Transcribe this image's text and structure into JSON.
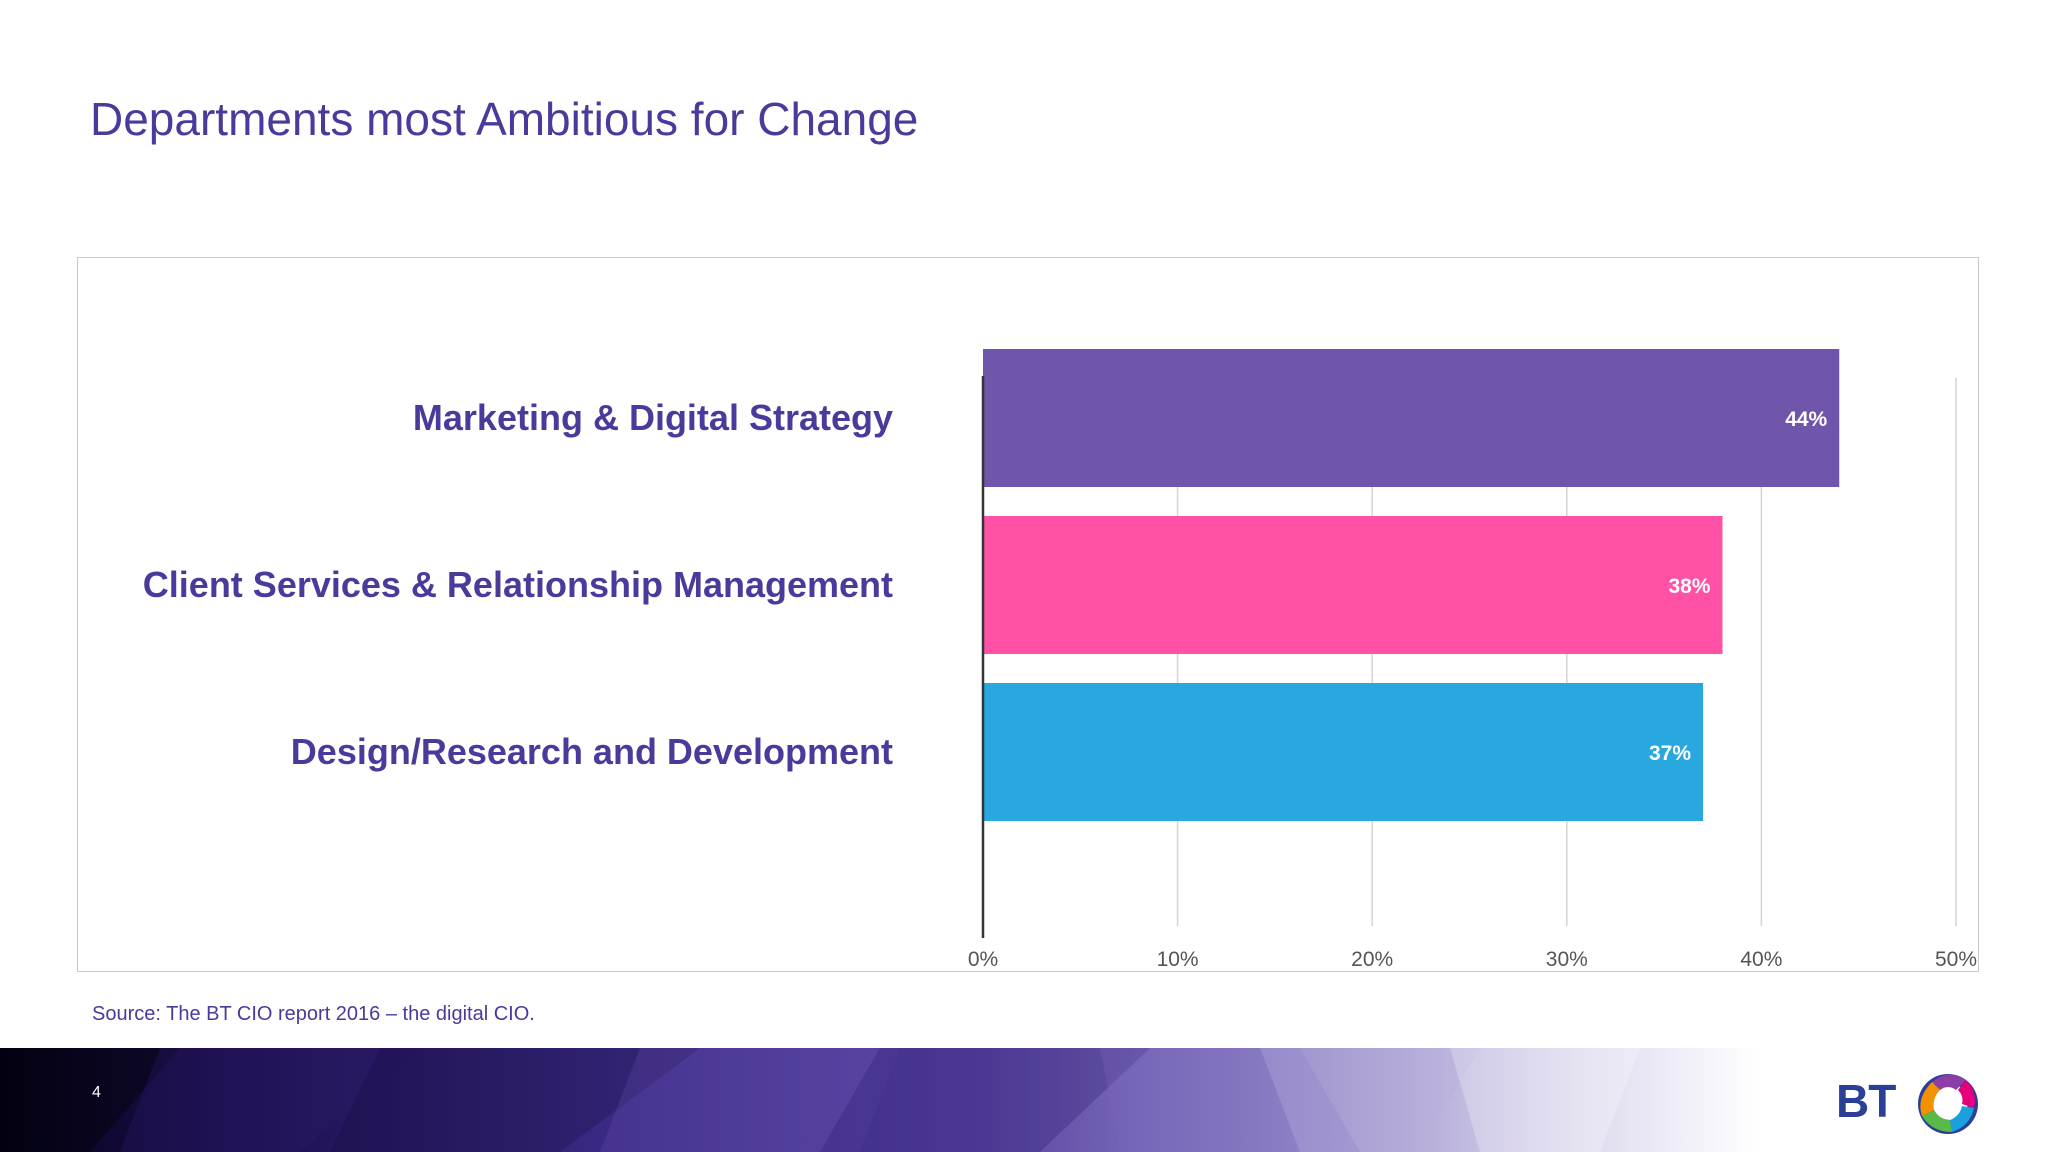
{
  "slide": {
    "title": "Departments most Ambitious for Change",
    "source": "Source: The BT CIO report 2016 – the digital CIO.",
    "page_number": "4",
    "logo_text": "BT"
  },
  "colors": {
    "title": "#4b3a9b",
    "bar_purple": "#6f56ab",
    "bar_pink": "#ff52a6",
    "bar_blue": "#29a8df"
  },
  "chart_data": {
    "type": "bar",
    "orientation": "horizontal",
    "categories": [
      "Marketing & Digital Strategy",
      "Client Services & Relationship Management",
      "Design/Research and Development"
    ],
    "values": [
      44,
      38,
      37
    ],
    "value_labels": [
      "44%",
      "38%",
      "37%"
    ],
    "bar_colors": [
      "#6f56ab",
      "#ff52a6",
      "#29a8df"
    ],
    "xlim": [
      0,
      50
    ],
    "xticks": [
      0,
      10,
      20,
      30,
      40,
      50
    ],
    "xtick_labels": [
      "0%",
      "10%",
      "20%",
      "30%",
      "40%",
      "50%"
    ],
    "grid": true,
    "legend": "none"
  }
}
